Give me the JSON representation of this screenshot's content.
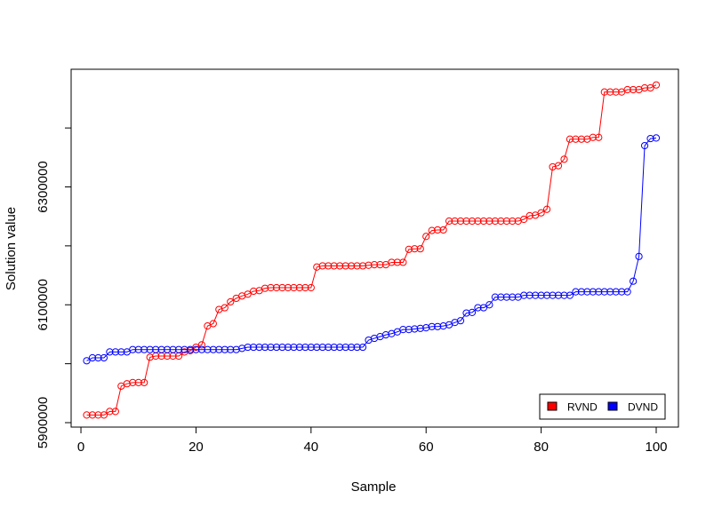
{
  "chart_data": {
    "type": "line",
    "title": "",
    "xlabel": "Sample",
    "ylabel": "Solution value",
    "xlim": [
      1,
      100
    ],
    "ylim": [
      5900000,
      6500000
    ],
    "x_ticks": [
      0,
      20,
      40,
      60,
      80,
      100
    ],
    "x_tick_labels": [
      "0",
      "20",
      "40",
      "60",
      "80",
      "100"
    ],
    "y_ticks": [
      5900000,
      6100000,
      6300000
    ],
    "y_tick_labels": [
      "5900000",
      "6100000",
      "6300000"
    ],
    "y_minor_ticks": [
      6000000,
      6200000,
      6400000
    ],
    "legend_position": "bottom-right",
    "grid": false,
    "x": [
      1,
      2,
      3,
      4,
      5,
      6,
      7,
      8,
      9,
      10,
      11,
      12,
      13,
      14,
      15,
      16,
      17,
      18,
      19,
      20,
      21,
      22,
      23,
      24,
      25,
      26,
      27,
      28,
      29,
      30,
      31,
      32,
      33,
      34,
      35,
      36,
      37,
      38,
      39,
      40,
      41,
      42,
      43,
      44,
      45,
      46,
      47,
      48,
      49,
      50,
      51,
      52,
      53,
      54,
      55,
      56,
      57,
      58,
      59,
      60,
      61,
      62,
      63,
      64,
      65,
      66,
      67,
      68,
      69,
      70,
      71,
      72,
      73,
      74,
      75,
      76,
      77,
      78,
      79,
      80,
      81,
      82,
      83,
      84,
      85,
      86,
      87,
      88,
      89,
      90,
      91,
      92,
      93,
      94,
      95,
      96,
      97,
      98,
      99,
      100
    ],
    "series": [
      {
        "name": "RVND",
        "color": "#ff0000",
        "values": [
          5913000,
          5913000,
          5913000,
          5913000,
          5919000,
          5919000,
          5962000,
          5966000,
          5968000,
          5968000,
          5968000,
          6011000,
          6013000,
          6013000,
          6013000,
          6013000,
          6013000,
          6020000,
          6022000,
          6028000,
          6032000,
          6064000,
          6068000,
          6092000,
          6095000,
          6105000,
          6111000,
          6115000,
          6118000,
          6123000,
          6124000,
          6128000,
          6129000,
          6129000,
          6129000,
          6129000,
          6129000,
          6129000,
          6129000,
          6129000,
          6164000,
          6166000,
          6166000,
          6166000,
          6166000,
          6166000,
          6166000,
          6166000,
          6166000,
          6167000,
          6168000,
          6168000,
          6168000,
          6172000,
          6172000,
          6172000,
          6194000,
          6195000,
          6195000,
          6216000,
          6226000,
          6227000,
          6227000,
          6242000,
          6242000,
          6242000,
          6242000,
          6242000,
          6242000,
          6242000,
          6242000,
          6242000,
          6242000,
          6242000,
          6242000,
          6242000,
          6245000,
          6251000,
          6252000,
          6256000,
          6262000,
          6334000,
          6336000,
          6347000,
          6381000,
          6381000,
          6381000,
          6381000,
          6384000,
          6384000,
          6461000,
          6461000,
          6461000,
          6461000,
          6465000,
          6465000,
          6465000,
          6468000,
          6468000,
          6473000
        ]
      },
      {
        "name": "DVND",
        "color": "#0000ff",
        "values": [
          6005000,
          6010000,
          6010000,
          6010000,
          6020000,
          6020000,
          6020000,
          6020000,
          6024000,
          6024000,
          6024000,
          6024000,
          6024000,
          6024000,
          6024000,
          6024000,
          6024000,
          6024000,
          6024000,
          6024000,
          6024000,
          6024000,
          6024000,
          6024000,
          6024000,
          6024000,
          6024000,
          6026000,
          6028000,
          6028000,
          6028000,
          6028000,
          6028000,
          6028000,
          6028000,
          6028000,
          6028000,
          6028000,
          6028000,
          6028000,
          6028000,
          6028000,
          6028000,
          6028000,
          6028000,
          6028000,
          6028000,
          6028000,
          6028000,
          6040000,
          6043000,
          6046000,
          6049000,
          6051000,
          6054000,
          6058000,
          6058000,
          6059000,
          6060000,
          6061000,
          6063000,
          6063000,
          6064000,
          6066000,
          6070000,
          6073000,
          6086000,
          6087000,
          6095000,
          6095000,
          6100000,
          6113000,
          6113000,
          6113000,
          6113000,
          6113000,
          6116000,
          6116000,
          6116000,
          6116000,
          6116000,
          6116000,
          6116000,
          6116000,
          6116000,
          6122000,
          6122000,
          6122000,
          6122000,
          6122000,
          6122000,
          6122000,
          6122000,
          6122000,
          6122000,
          6140000,
          6182000,
          6370000,
          6382000,
          6383000
        ]
      }
    ]
  }
}
